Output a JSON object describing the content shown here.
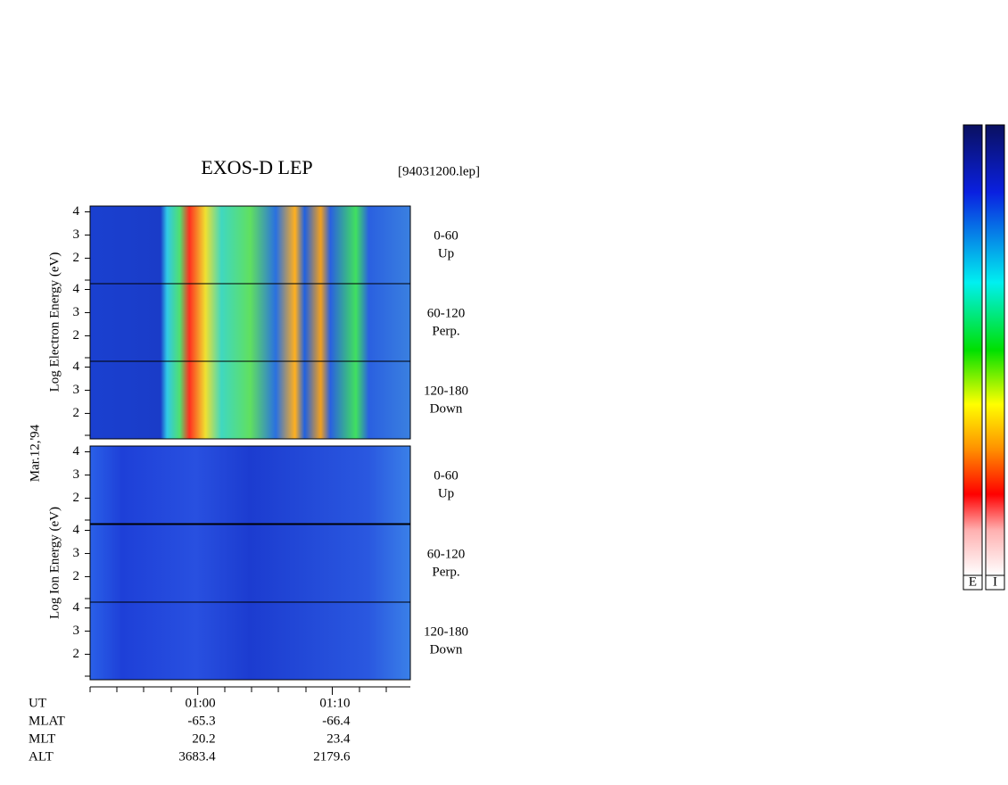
{
  "chart_data": {
    "type": "spectrogram",
    "title": "EXOS-D LEP",
    "file_label": "[94031200.lep]",
    "date_label": "Mar.12,'94",
    "electron_axis_label": "Log  Electron  Energy (eV)",
    "ion_axis_label": "Log  Ion  Energy (eV)",
    "electron_panels": [
      {
        "pitch_angle": "0-60",
        "direction": "Up"
      },
      {
        "pitch_angle": "60-120",
        "direction": "Perp."
      },
      {
        "pitch_angle": "120-180",
        "direction": "Down"
      }
    ],
    "ion_panels": [
      {
        "pitch_angle": "0-60",
        "direction": "Up"
      },
      {
        "pitch_angle": "60-120",
        "direction": "Perp."
      },
      {
        "pitch_angle": "120-180",
        "direction": "Down"
      }
    ],
    "ylim": [
      0.9,
      4.25
    ],
    "yticks": [
      2,
      3,
      4
    ],
    "xlim": [
      52,
      75.8
    ],
    "xticks": [
      {
        "value": 60,
        "label": "01:00"
      },
      {
        "value": 70,
        "label": "01:10"
      }
    ],
    "orbit_rows": [
      {
        "name": "UT"
      },
      {
        "name": "MLAT",
        "values": [
          -65.3,
          -66.4
        ]
      },
      {
        "name": "MLT",
        "values": [
          20.2,
          23.4
        ]
      },
      {
        "name": "ALT",
        "values": [
          3683.4,
          2179.6
        ]
      }
    ],
    "colorbars": [
      "E",
      "I"
    ]
  }
}
